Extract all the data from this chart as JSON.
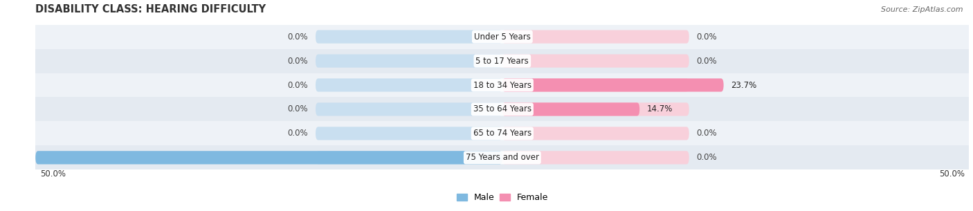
{
  "title": "DISABILITY CLASS: HEARING DIFFICULTY",
  "source": "Source: ZipAtlas.com",
  "categories": [
    "Under 5 Years",
    "5 to 17 Years",
    "18 to 34 Years",
    "35 to 64 Years",
    "65 to 74 Years",
    "75 Years and over"
  ],
  "male_values": [
    0.0,
    0.0,
    0.0,
    0.0,
    0.0,
    50.0
  ],
  "female_values": [
    0.0,
    0.0,
    23.7,
    14.7,
    0.0,
    0.0
  ],
  "male_color": "#7fb9e0",
  "female_color": "#f48fb1",
  "male_bg_color": "#c9dff0",
  "female_bg_color": "#f8d0db",
  "row_even_bg": "#eef2f7",
  "row_odd_bg": "#e4eaf1",
  "xlim": 50.0,
  "title_fontsize": 10.5,
  "source_fontsize": 8,
  "category_fontsize": 8.5,
  "value_fontsize": 8.5,
  "legend_fontsize": 9,
  "bar_height": 0.55,
  "bg_bar_width": 20.0
}
